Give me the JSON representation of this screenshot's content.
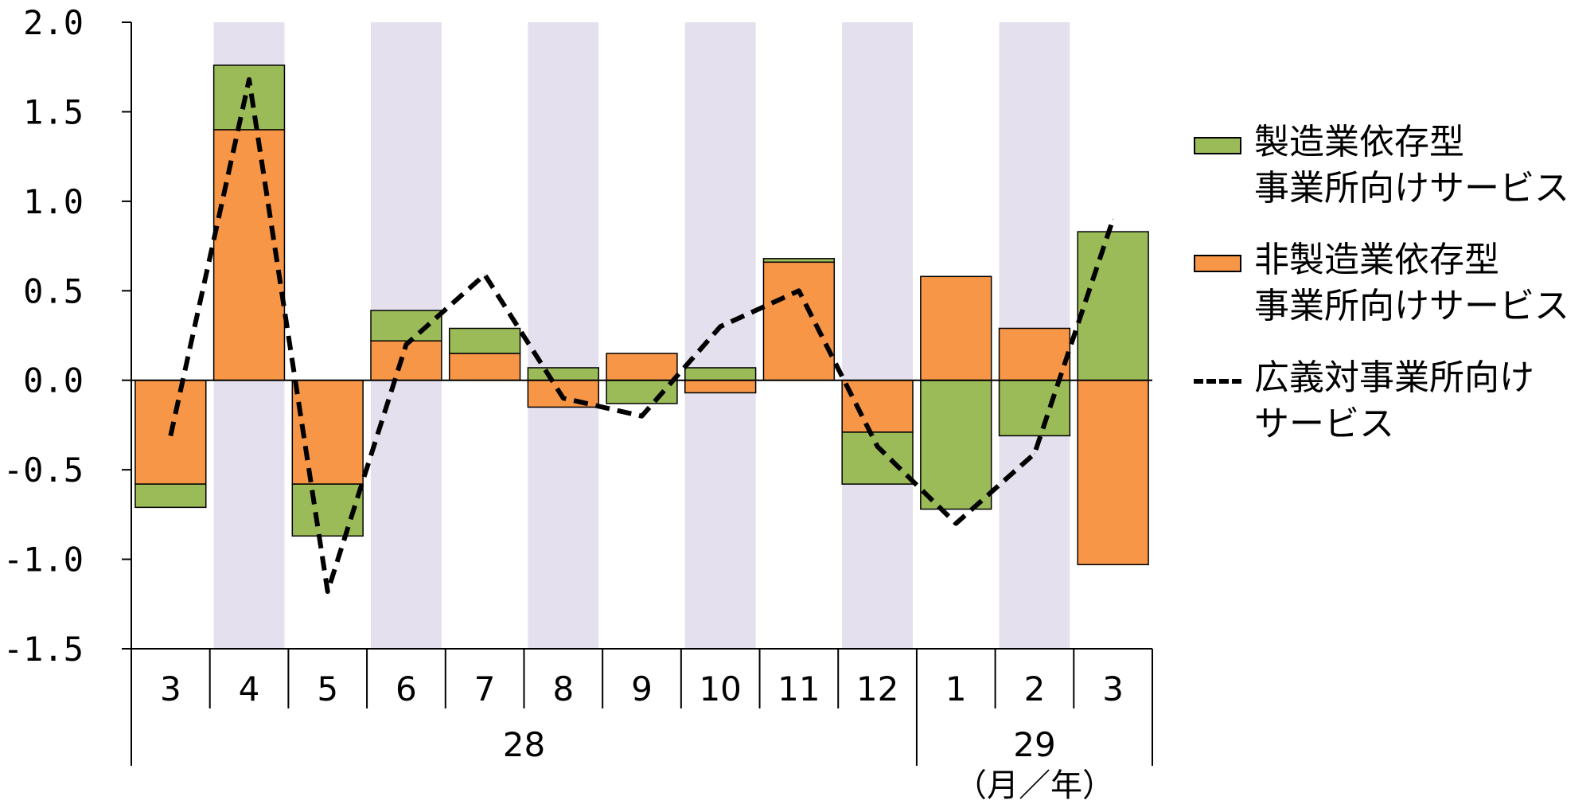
{
  "chart_data": {
    "type": "bar",
    "stacked": true,
    "categories": [
      "3",
      "4",
      "5",
      "6",
      "7",
      "8",
      "9",
      "10",
      "11",
      "12",
      "1",
      "2",
      "3"
    ],
    "year_groups": [
      {
        "label": "28",
        "start": 0,
        "end": 9
      },
      {
        "label": "29",
        "start": 10,
        "end": 12
      }
    ],
    "unit_label": "（月／年）",
    "ylim": [
      -1.5,
      2.0
    ],
    "yticks": [
      "2.0",
      "1.5",
      "1.0",
      "0.5",
      "0.0",
      "-0.5",
      "-1.0",
      "-1.5"
    ],
    "series": [
      {
        "name": "非製造業依存型事業所向けサービス",
        "legend_lines": [
          "非製造業依存型",
          "事業所向けサービス"
        ],
        "kind": "bar",
        "color": "#f79646",
        "values": [
          -0.58,
          1.4,
          -0.58,
          0.22,
          0.15,
          -0.15,
          0.15,
          -0.07,
          0.66,
          -0.29,
          0.58,
          0.29,
          -1.03
        ]
      },
      {
        "name": "製造業依存型事業所向けサービス",
        "legend_lines": [
          "製造業依存型",
          "事業所向けサービス"
        ],
        "kind": "bar",
        "color": "#9bbb59",
        "values": [
          -0.13,
          0.36,
          -0.29,
          0.17,
          0.14,
          0.07,
          -0.13,
          0.07,
          0.02,
          -0.29,
          -0.72,
          -0.31,
          0.83
        ]
      },
      {
        "name": "広義対事業所向けサービス",
        "legend_lines": [
          "広義対事業所向け",
          "サービス"
        ],
        "kind": "line",
        "color": "#000000",
        "values": [
          -0.31,
          1.68,
          -1.18,
          0.2,
          0.59,
          -0.1,
          -0.2,
          0.3,
          0.5,
          -0.37,
          -0.8,
          -0.41,
          0.9
        ]
      }
    ],
    "shaded_bands": [
      1,
      3,
      5,
      7,
      9,
      11
    ],
    "band_color": "#e4e0ee",
    "legend_position": "right"
  }
}
